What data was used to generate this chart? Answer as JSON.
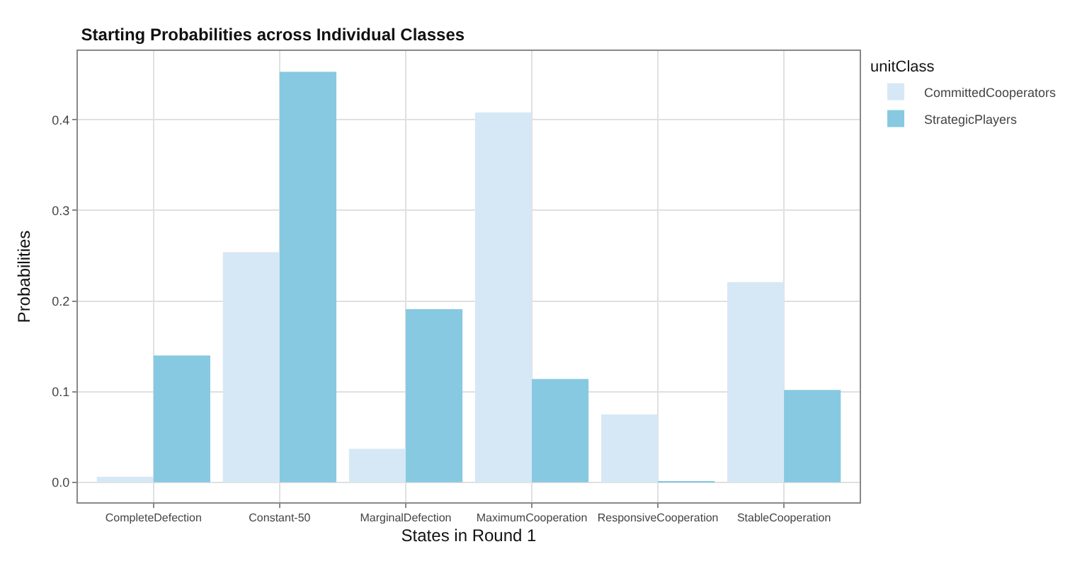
{
  "chart_data": {
    "type": "bar",
    "title": "Starting Probabilities across Individual Classes",
    "xlabel": "States in Round 1",
    "ylabel": "Probabilities",
    "legend_title": "unitClass",
    "categories": [
      "CompleteDefection",
      "Constant-50",
      "MarginalDefection",
      "MaximumCooperation",
      "ResponsiveCooperation",
      "StableCooperation"
    ],
    "series": [
      {
        "name": "CommittedCooperators",
        "color": "#d6e8f5",
        "values": [
          0.006,
          0.254,
          0.037,
          0.408,
          0.075,
          0.221
        ]
      },
      {
        "name": "StrategicPlayers",
        "color": "#87c9e1",
        "values": [
          0.14,
          0.453,
          0.191,
          0.114,
          0.001,
          0.102
        ]
      }
    ],
    "ylim": [
      -0.022,
      0.476
    ],
    "yticks": [
      {
        "value": 0,
        "label": "0.0"
      },
      0.1,
      0.2,
      0.3,
      0.4
    ],
    "grid": true,
    "legend": "top right"
  }
}
